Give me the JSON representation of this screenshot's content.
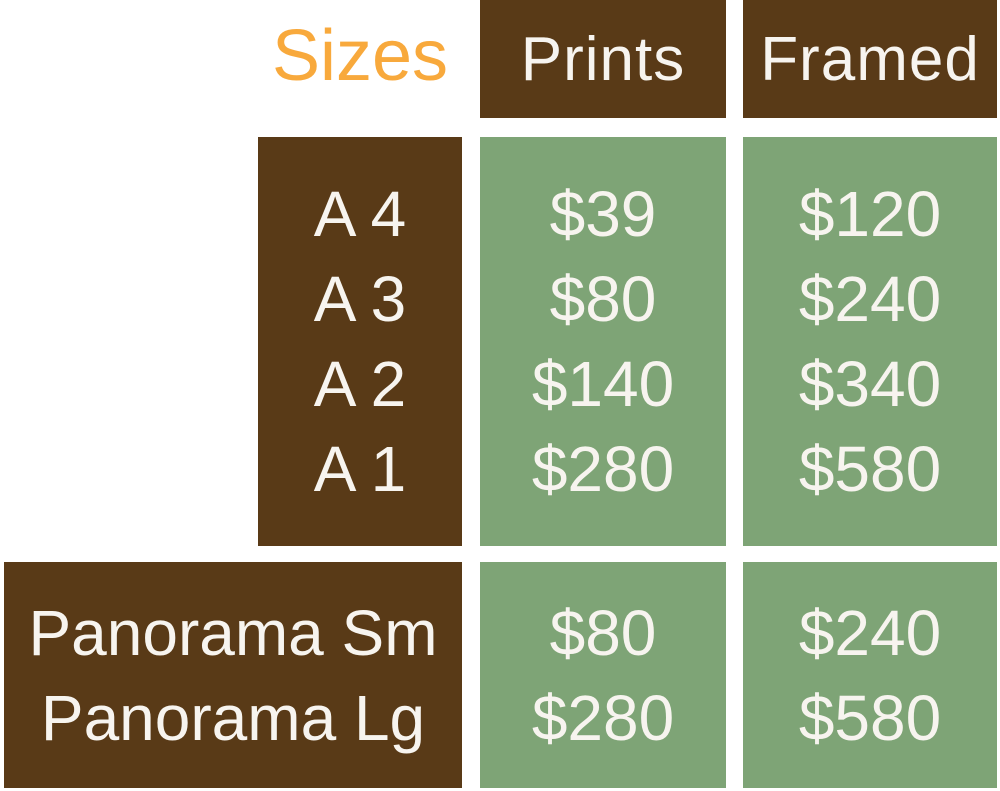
{
  "colors": {
    "brown": "#593a17",
    "green": "#7ea476",
    "orange": "#f8a93c",
    "text": "#f7f4ef",
    "background": "#ffffff"
  },
  "header": {
    "sizes_label": "Sizes",
    "prints_label": "Prints",
    "framed_label": "Framed"
  },
  "sizes": {
    "rows": [
      {
        "size": "A 4",
        "prints": "$39",
        "framed": "$120"
      },
      {
        "size": "A 3",
        "prints": "$80",
        "framed": "$240"
      },
      {
        "size": "A 2",
        "prints": "$140",
        "framed": "$340"
      },
      {
        "size": "A 1",
        "prints": "$280",
        "framed": "$580"
      }
    ]
  },
  "panorama": {
    "rows": [
      {
        "size": "Panorama Sm",
        "prints": "$80",
        "framed": "$240"
      },
      {
        "size": "Panorama Lg",
        "prints": "$280",
        "framed": "$580"
      }
    ]
  },
  "chart_data": {
    "type": "table",
    "title": "Sizes",
    "columns": [
      "Sizes",
      "Prints",
      "Framed"
    ],
    "rows": [
      [
        "A 4",
        "$39",
        "$120"
      ],
      [
        "A 3",
        "$80",
        "$240"
      ],
      [
        "A 2",
        "$140",
        "$340"
      ],
      [
        "A 1",
        "$280",
        "$580"
      ],
      [
        "Panorama Sm",
        "$80",
        "$240"
      ],
      [
        "Panorama Lg",
        "$280",
        "$580"
      ]
    ],
    "layout_hints": {
      "header_style": "brown boxes, white text; Sizes corner label orange on white",
      "body_style": "price columns on sage green, size labels on brown",
      "grid": "white gutters between blocks"
    }
  }
}
